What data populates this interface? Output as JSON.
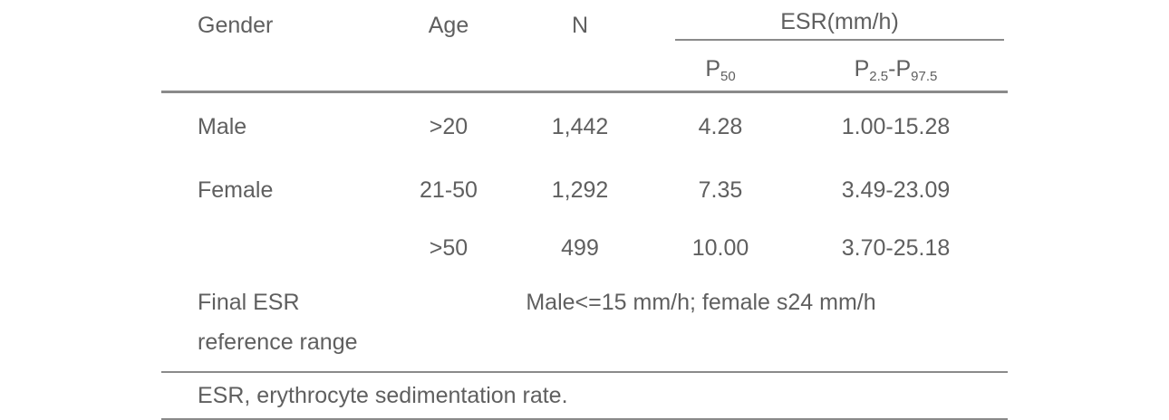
{
  "table": {
    "header": {
      "gender": "Gender",
      "age": "Age",
      "n": "N",
      "esr_group": "ESR(mm/h)",
      "p50": {
        "base": "P",
        "sub": "50"
      },
      "p_range": {
        "base1": "P",
        "sub1": "2.5",
        "dash": "-",
        "base2": "P",
        "sub2": "97.5"
      }
    },
    "rows": [
      {
        "gender": "Male",
        "age": ">20",
        "n": "1,442",
        "p50": "4.28",
        "range": "1.00-15.28"
      },
      {
        "gender": "Female",
        "age": "21-50",
        "n": "1,292",
        "p50": "7.35",
        "range": "3.49-23.09"
      },
      {
        "gender": "",
        "age": ">50",
        "n": "499",
        "p50": "10.00",
        "range": "3.70-25.18"
      }
    ],
    "final_row": {
      "label_line1": "Final ESR",
      "label_line2": "reference range",
      "value": "Male<=15 mm/h; female s24 mm/h"
    },
    "footnote": "ESR, erythrocyte sedimentation rate."
  },
  "colors": {
    "text": "#5f5f5f",
    "rule": "#8a8a8a"
  }
}
